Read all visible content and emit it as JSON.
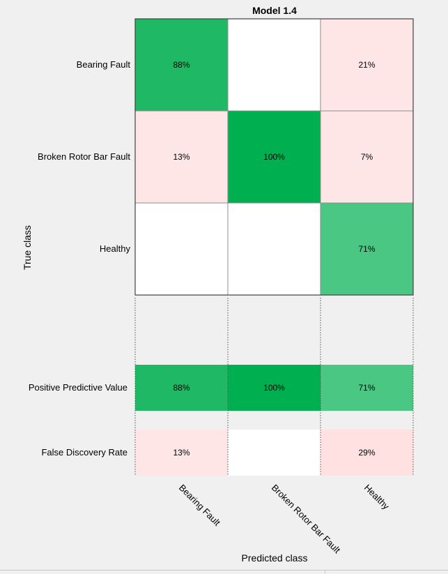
{
  "chart_data": {
    "type": "heatmap",
    "title": "Model 1.4",
    "xlabel": "Predicted class",
    "ylabel": "True class",
    "classes": [
      "Bearing Fault",
      "Broken Rotor Bar Fault",
      "Healthy"
    ],
    "matrix": [
      [
        88,
        null,
        21
      ],
      [
        13,
        100,
        7
      ],
      [
        null,
        null,
        71
      ]
    ],
    "summary_rows": [
      {
        "label": "Positive Predictive Value",
        "values": [
          88,
          100,
          71
        ]
      },
      {
        "label": "False Discovery Rate",
        "values": [
          13,
          null,
          29
        ]
      }
    ],
    "value_format": "percent",
    "colors": {
      "background": "#f0f0f0",
      "empty_cell": "#ffffff",
      "positive_strong": "#00b050",
      "negative_strong": "#ff9999",
      "grid_line": "#8c8c8c",
      "text": "#000000"
    }
  }
}
